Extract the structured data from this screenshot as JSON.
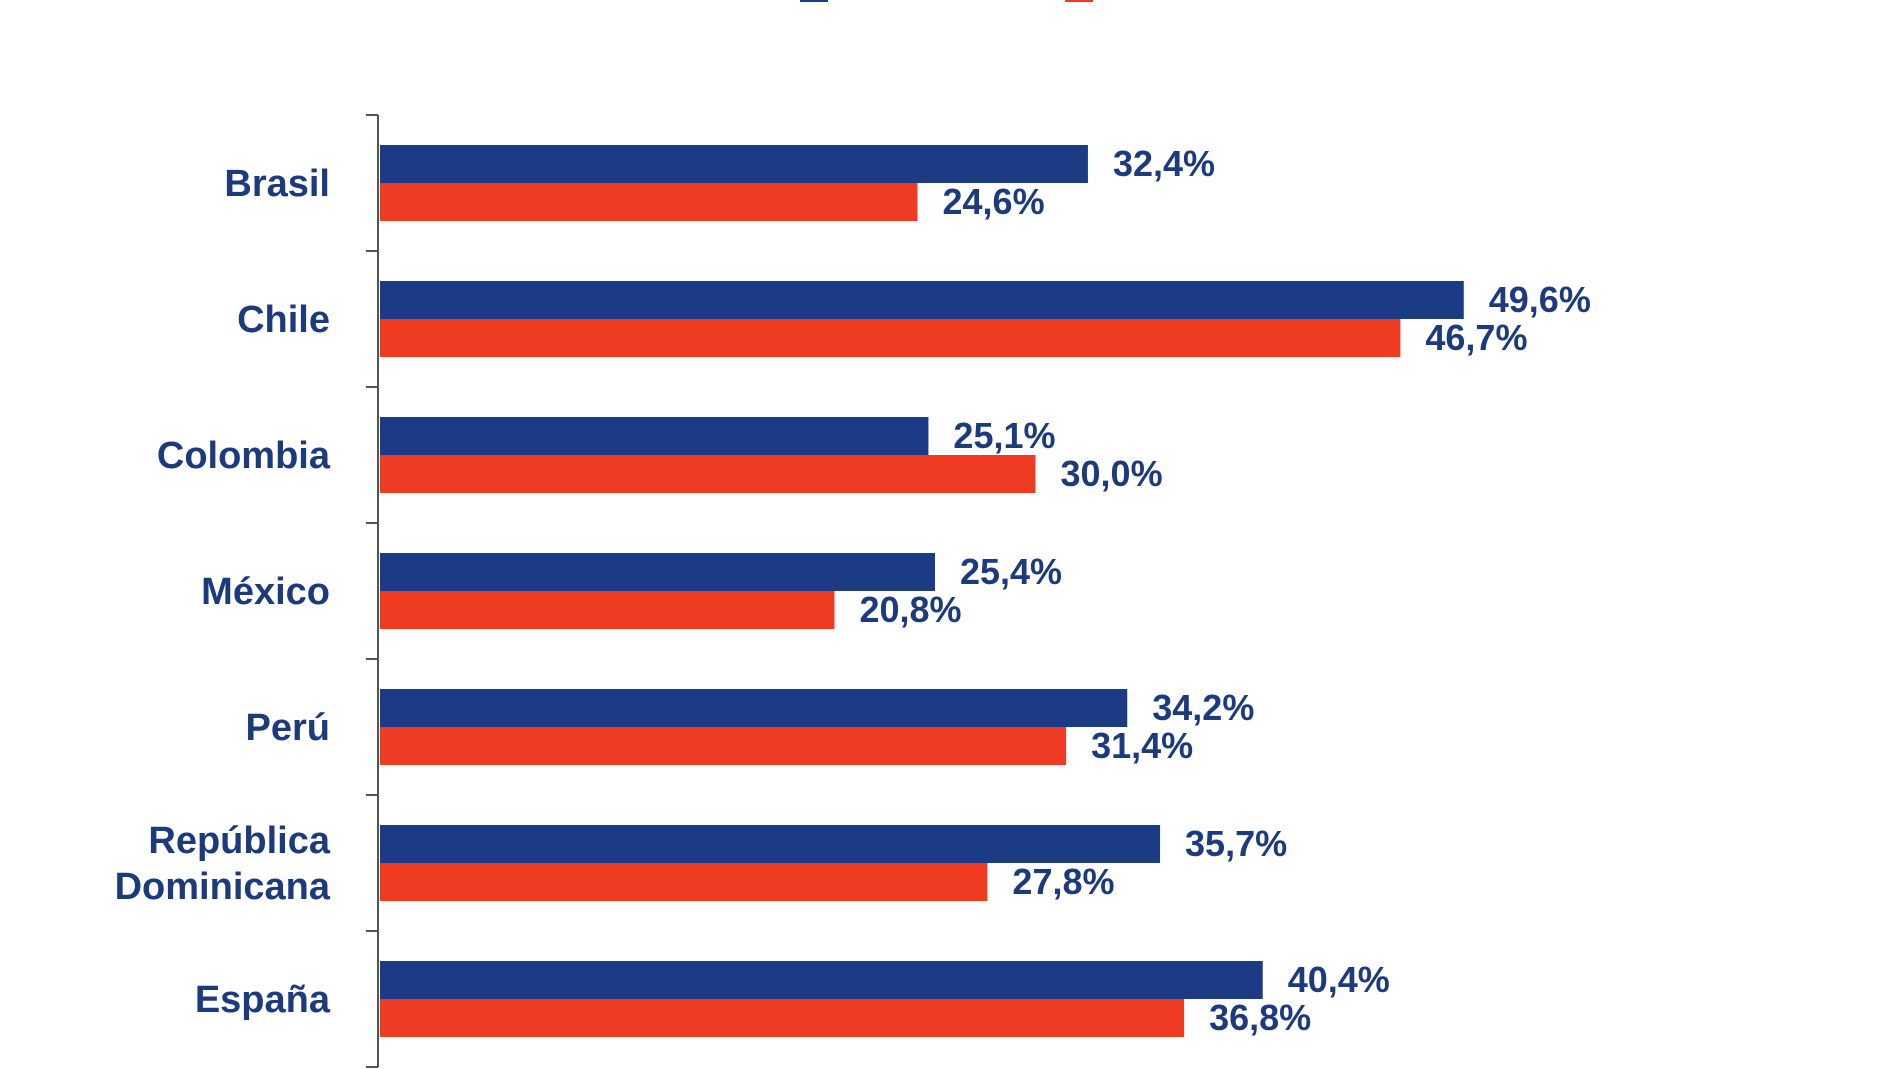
{
  "chart_data": {
    "type": "bar",
    "orientation": "horizontal",
    "categories": [
      "Brasil",
      "Chile",
      "Colombia",
      "México",
      "Perú",
      "República Dominicana",
      "España"
    ],
    "category_lines": [
      [
        "Brasil"
      ],
      [
        "Chile"
      ],
      [
        "Colombia"
      ],
      [
        "México"
      ],
      [
        "Perú"
      ],
      [
        "República",
        "Dominicana"
      ],
      [
        "España"
      ]
    ],
    "series": [
      {
        "color": "#1b3c85",
        "values": [
          32.4,
          49.6,
          25.1,
          25.4,
          34.2,
          35.7,
          40.4
        ],
        "labels": [
          "32,4%",
          "49,6%",
          "25,1%",
          "25,4%",
          "34,2%",
          "35,7%",
          "40,4%"
        ]
      },
      {
        "color": "#ef3b22",
        "values": [
          24.6,
          46.7,
          30.0,
          20.8,
          31.4,
          27.8,
          36.8
        ],
        "labels": [
          "24,6%",
          "46,7%",
          "30,0%",
          "20,8%",
          "31,4%",
          "27,8%",
          "36,8%"
        ]
      }
    ],
    "xlim": [
      0,
      60
    ],
    "grid": false,
    "legend": "top"
  }
}
